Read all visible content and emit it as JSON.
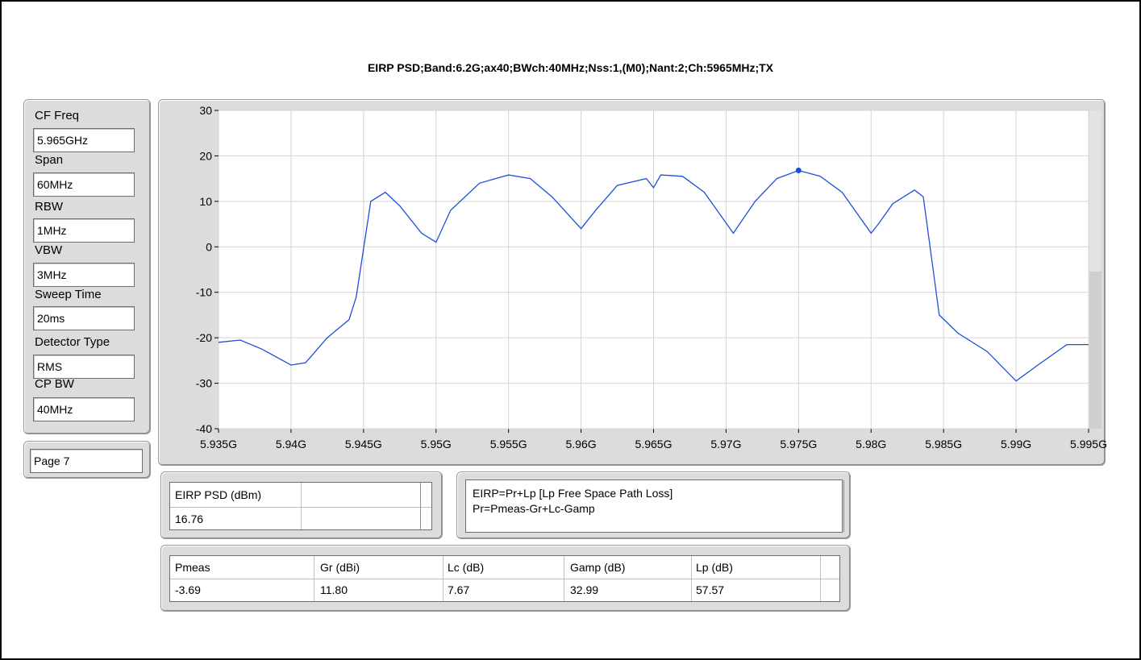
{
  "title": "EIRP PSD;Band:6.2G;ax40;BWch:40MHz;Nss:1,(M0);Nant:2;Ch:5965MHz;TX",
  "settings": [
    {
      "label": "CF Freq",
      "value": "5.965GHz"
    },
    {
      "label": "Span",
      "value": "60MHz"
    },
    {
      "label": "RBW",
      "value": "1MHz"
    },
    {
      "label": "VBW",
      "value": "3MHz"
    },
    {
      "label": "Sweep Time",
      "value": "20ms"
    },
    {
      "label": "Detector Type",
      "value": "RMS"
    },
    {
      "label": "CP BW",
      "value": "40MHz"
    }
  ],
  "page": "Page 7",
  "eirp_table": {
    "header": "EIRP PSD (dBm)",
    "value": "16.76"
  },
  "formula": {
    "line1": "EIRP=Pr+Lp [Lp Free Space Path Loss]",
    "line2": "Pr=Pmeas-Gr+Lc-Gamp"
  },
  "meas_table": {
    "headers": [
      "Pmeas",
      "Gr (dBi)",
      "Lc (dB)",
      "Gamp (dB)",
      "Lp (dB)"
    ],
    "values": [
      "-3.69",
      "11.80",
      "7.67",
      "32.99",
      "57.57"
    ]
  },
  "colors": {
    "trace": "#1f4fd6",
    "panel": "#dcdcdc",
    "plot_bg": "#ffffff"
  },
  "chart_data": {
    "type": "line",
    "xlim": [
      5.935,
      5.995
    ],
    "ylim": [
      -40,
      30
    ],
    "x_ticks": [
      "5.935G",
      "5.94G",
      "5.945G",
      "5.95G",
      "5.955G",
      "5.96G",
      "5.965G",
      "5.97G",
      "5.975G",
      "5.98G",
      "5.985G",
      "5.99G",
      "5.995G"
    ],
    "y_ticks": [
      "30",
      "20",
      "10",
      "0",
      "-10",
      "-20",
      "-30",
      "-40"
    ],
    "grid": true,
    "series": [
      {
        "x": [
          5.935,
          5.9365,
          5.938,
          5.94,
          5.941,
          5.9425,
          5.944,
          5.9445,
          5.9455,
          5.9465,
          5.9475,
          5.949,
          5.95,
          5.951,
          5.953,
          5.955,
          5.9565,
          5.958,
          5.96,
          5.961,
          5.9625,
          5.9645,
          5.965,
          5.9655,
          5.967,
          5.9685,
          5.9705,
          5.972,
          5.9735,
          5.975,
          5.9765,
          5.978,
          5.98,
          5.9805,
          5.9815,
          5.983,
          5.9836,
          5.9847,
          5.986,
          5.988,
          5.99,
          5.9915,
          5.9935,
          5.995
        ],
        "y": [
          -21,
          -20.5,
          -22.5,
          -26,
          -25.5,
          -20,
          -16,
          -11,
          10,
          12,
          9,
          3,
          1,
          8,
          14,
          15.8,
          15,
          11,
          4,
          8,
          13.5,
          15,
          13,
          15.8,
          15.5,
          12,
          3,
          10,
          15,
          16.8,
          15.5,
          12,
          3,
          5,
          9.5,
          12.5,
          11,
          -15,
          -19,
          -23,
          -29.5,
          -26,
          -21.5,
          -21.5
        ]
      }
    ],
    "marker": {
      "x": 5.975,
      "y": 16.8
    }
  }
}
